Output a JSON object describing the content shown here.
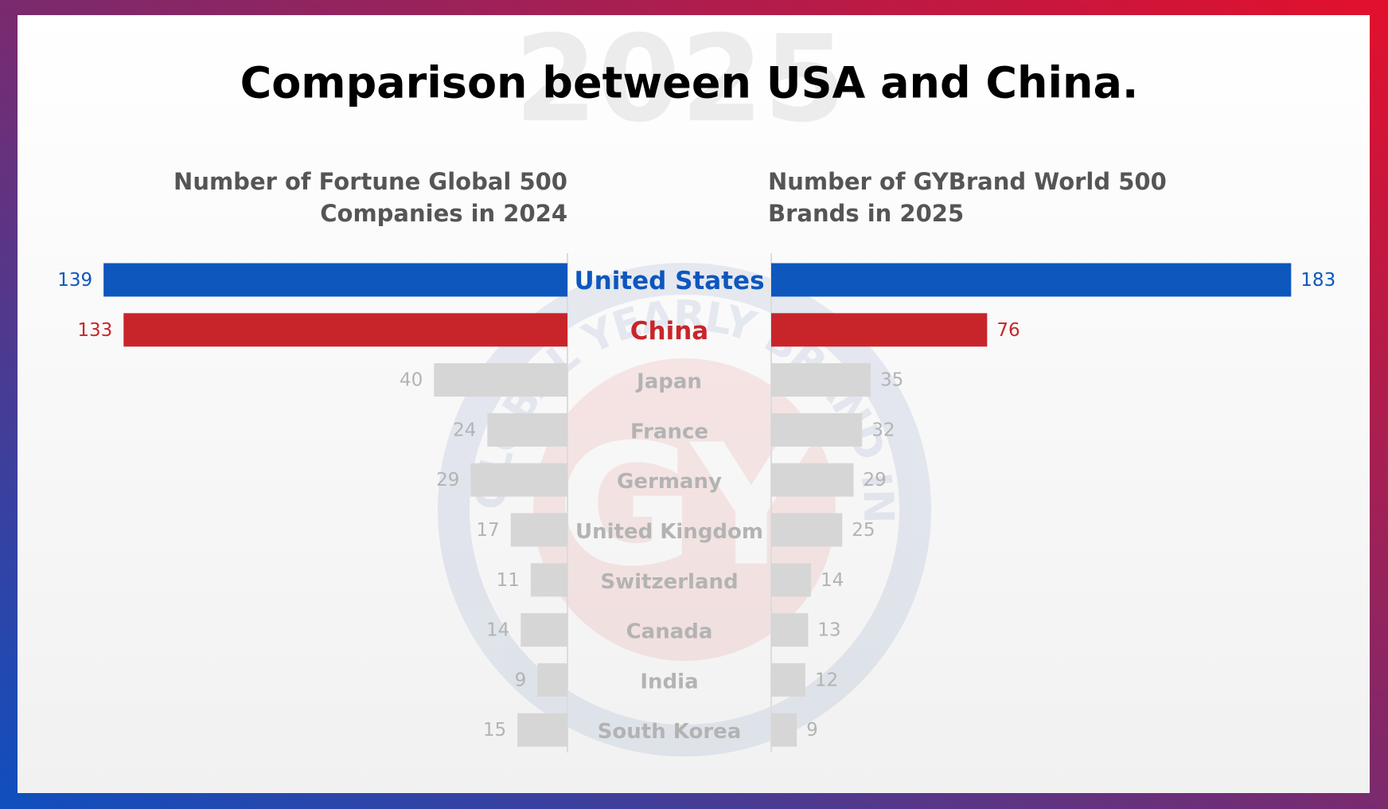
{
  "chart_data": {
    "type": "butterfly",
    "title": "Comparison between USA and China.",
    "watermark": "2025",
    "watermark_logo": "GY",
    "watermark_text": "GLOBAL YEARLY BRAND INSTITUTE",
    "categories": [
      "United States",
      "China",
      "Japan",
      "France",
      "Germany",
      "United Kingdom",
      "Switzerland",
      "Canada",
      "India",
      "South Korea"
    ],
    "colors": [
      "#0d57bd",
      "#c8252b",
      "#d6d6d6",
      "#d6d6d6",
      "#d6d6d6",
      "#d6d6d6",
      "#d6d6d6",
      "#d6d6d6",
      "#d6d6d6",
      "#d6d6d6"
    ],
    "label_colors": [
      "#0d57bd",
      "#c8252b",
      "#b3b3b3",
      "#b3b3b3",
      "#b3b3b3",
      "#b3b3b3",
      "#b3b3b3",
      "#b3b3b3",
      "#b3b3b3",
      "#b3b3b3"
    ],
    "series": [
      {
        "name": "Number of Fortune Global 500 Companies in 2024",
        "values": [
          139,
          133,
          40,
          24,
          29,
          17,
          11,
          14,
          9,
          15
        ],
        "xlim": [
          0,
          150
        ]
      },
      {
        "name": "Number of GYBrand World 500 Brands in 2025",
        "values": [
          183,
          76,
          35,
          32,
          29,
          25,
          14,
          13,
          12,
          9
        ],
        "xlim": [
          0,
          200
        ]
      }
    ]
  }
}
